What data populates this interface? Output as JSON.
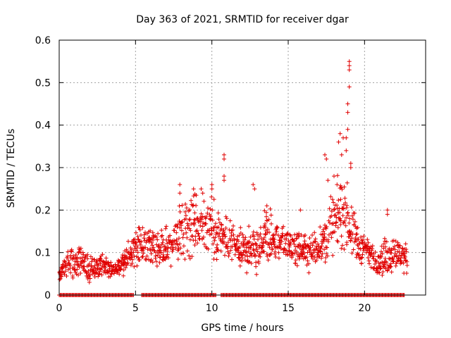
{
  "chart_data": {
    "type": "scatter",
    "title": "Day 363 of 2021, SRMTID for receiver dgar",
    "xlabel": "GPS time / hours",
    "ylabel": "SRMTID / TECUs",
    "xlim": [
      0,
      24
    ],
    "ylim": [
      0,
      0.6
    ],
    "xticks": [
      0,
      5,
      10,
      15,
      20
    ],
    "yticks": [
      0,
      0.1,
      0.2,
      0.3,
      0.4,
      0.5,
      0.6
    ],
    "xtick_labels": [
      "0",
      "5",
      "10",
      "15",
      "20"
    ],
    "ytick_labels": [
      "0",
      "0.1",
      "0.2",
      "0.3",
      "0.4",
      "0.5",
      "0.6"
    ],
    "grid": true,
    "marker": "+",
    "color": "#e00000",
    "series": [
      {
        "name": "SRMTID",
        "profile_x": [
          0,
          0.5,
          1,
          1.5,
          2,
          2.5,
          3,
          3.5,
          4,
          4.5,
          5,
          5.5,
          6,
          6.5,
          7,
          7.5,
          8,
          8.5,
          9,
          9.5,
          10,
          10.5,
          11,
          11.5,
          12,
          12.5,
          13,
          13.5,
          14,
          14.5,
          15,
          15.5,
          16,
          16.5,
          17,
          17.5,
          18,
          18.5,
          19,
          19.5,
          20,
          20.5,
          21,
          21.5,
          22,
          22.5,
          23
        ],
        "profile_mean": [
          0.05,
          0.07,
          0.08,
          0.07,
          0.06,
          0.07,
          0.07,
          0.06,
          0.07,
          0.09,
          0.11,
          0.12,
          0.11,
          0.1,
          0.11,
          0.12,
          0.15,
          0.17,
          0.18,
          0.16,
          0.16,
          0.14,
          0.13,
          0.12,
          0.1,
          0.11,
          0.1,
          0.15,
          0.13,
          0.12,
          0.12,
          0.11,
          0.11,
          0.1,
          0.12,
          0.14,
          0.17,
          0.2,
          0.18,
          0.12,
          0.11,
          0.09,
          0.08,
          0.09,
          0.1,
          0.09,
          0.08
        ],
        "profile_spread": [
          0.015,
          0.025,
          0.03,
          0.025,
          0.02,
          0.02,
          0.02,
          0.015,
          0.02,
          0.025,
          0.03,
          0.03,
          0.03,
          0.03,
          0.035,
          0.04,
          0.05,
          0.055,
          0.05,
          0.045,
          0.05,
          0.04,
          0.04,
          0.035,
          0.03,
          0.035,
          0.035,
          0.04,
          0.035,
          0.03,
          0.03,
          0.03,
          0.03,
          0.03,
          0.035,
          0.045,
          0.05,
          0.06,
          0.05,
          0.035,
          0.03,
          0.025,
          0.025,
          0.03,
          0.03,
          0.025,
          0.02
        ],
        "outliers": [
          [
            7.9,
            0.26
          ],
          [
            7.9,
            0.24
          ],
          [
            8.8,
            0.25
          ],
          [
            9.3,
            0.25
          ],
          [
            9.4,
            0.24
          ],
          [
            10.0,
            0.26
          ],
          [
            10.0,
            0.25
          ],
          [
            10.8,
            0.33
          ],
          [
            10.8,
            0.32
          ],
          [
            10.8,
            0.28
          ],
          [
            10.8,
            0.27
          ],
          [
            12.7,
            0.26
          ],
          [
            12.8,
            0.25
          ],
          [
            13.6,
            0.21
          ],
          [
            15.8,
            0.2
          ],
          [
            17.4,
            0.33
          ],
          [
            17.5,
            0.32
          ],
          [
            17.6,
            0.27
          ],
          [
            18.0,
            0.28
          ],
          [
            18.2,
            0.26
          ],
          [
            18.3,
            0.36
          ],
          [
            18.4,
            0.38
          ],
          [
            18.5,
            0.33
          ],
          [
            18.6,
            0.37
          ],
          [
            18.8,
            0.37
          ],
          [
            18.8,
            0.34
          ],
          [
            18.9,
            0.39
          ],
          [
            18.9,
            0.43
          ],
          [
            18.9,
            0.45
          ],
          [
            19.0,
            0.49
          ],
          [
            19.0,
            0.53
          ],
          [
            19.0,
            0.54
          ],
          [
            19.0,
            0.55
          ],
          [
            19.1,
            0.31
          ],
          [
            19.1,
            0.3
          ],
          [
            21.5,
            0.2
          ],
          [
            21.5,
            0.19
          ]
        ],
        "zero_band": [
          [
            0.0,
            4.9
          ],
          [
            5.4,
            10.3
          ],
          [
            10.6,
            22.6
          ]
        ]
      }
    ]
  }
}
